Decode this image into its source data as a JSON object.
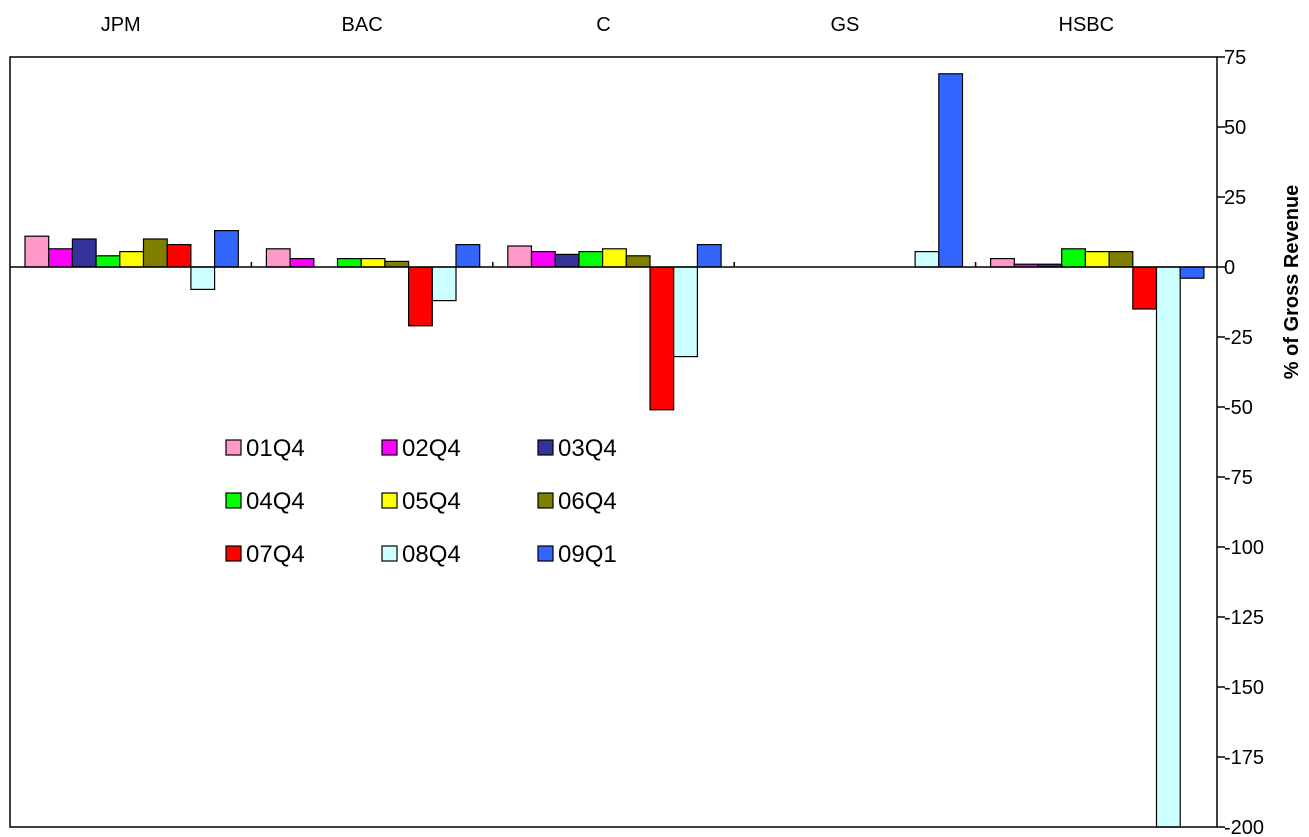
{
  "chart_data": {
    "type": "bar",
    "categories": [
      "JPM",
      "BAC",
      "C",
      "GS",
      "HSBC"
    ],
    "ylabel": "% of Gross Revenue",
    "ylim": [
      -200,
      75
    ],
    "yticks": [
      75,
      50,
      25,
      0,
      -25,
      -50,
      -75,
      -100,
      -125,
      -150,
      -175,
      -200
    ],
    "y_axis_side": "right",
    "category_labels_position": "top",
    "grid": false,
    "legend_position": "center-left",
    "series": [
      {
        "name": "01Q4",
        "color": "#ff99cc",
        "values": [
          11,
          6.5,
          7.5,
          null,
          3
        ]
      },
      {
        "name": "02Q4",
        "color": "#ff00ff",
        "values": [
          6.5,
          3,
          5.5,
          null,
          1
        ]
      },
      {
        "name": "03Q4",
        "color": "#333399",
        "values": [
          10,
          null,
          4.5,
          null,
          1
        ]
      },
      {
        "name": "04Q4",
        "color": "#00ff00",
        "values": [
          4,
          3,
          5.5,
          null,
          6.5
        ]
      },
      {
        "name": "05Q4",
        "color": "#ffff00",
        "values": [
          5.5,
          3,
          6.5,
          null,
          5.5
        ]
      },
      {
        "name": "06Q4",
        "color": "#808000",
        "values": [
          10,
          2,
          4,
          null,
          5.5
        ]
      },
      {
        "name": "07Q4",
        "color": "#ff0000",
        "values": [
          8,
          -21,
          -51,
          null,
          -15
        ]
      },
      {
        "name": "08Q4",
        "color": "#ccffff",
        "values": [
          -8,
          -12,
          -32,
          5.5,
          -200
        ]
      },
      {
        "name": "09Q1",
        "color": "#3366ff",
        "values": [
          13,
          8,
          8,
          69,
          -4
        ]
      }
    ]
  }
}
